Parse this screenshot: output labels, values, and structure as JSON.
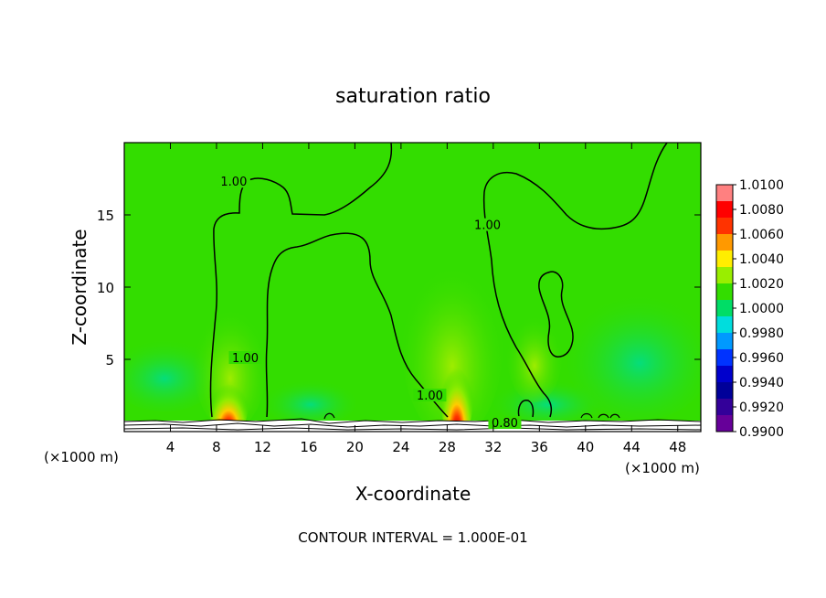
{
  "chart_data": {
    "type": "heatmap",
    "title": "saturation ratio",
    "xlabel": "X-coordinate",
    "ylabel": "Z-coordinate",
    "x_unit_left": "(×1000 m)",
    "x_unit_right": "(×1000 m)",
    "xlim": [
      0,
      50
    ],
    "ylim": [
      0,
      20
    ],
    "x_ticks": [
      4,
      8,
      12,
      16,
      20,
      24,
      28,
      32,
      36,
      40,
      44,
      48
    ],
    "y_ticks": [
      5,
      10,
      15
    ],
    "footer": "CONTOUR INTERVAL = 1.000E-01",
    "colorbar": {
      "labels": [
        "1.0100",
        "1.0080",
        "1.0060",
        "1.0040",
        "1.0020",
        "1.0000",
        "0.9980",
        "0.9960",
        "0.9940",
        "0.9920",
        "0.9900"
      ],
      "colors": [
        "#ff8080",
        "#ff0000",
        "#ff3300",
        "#ff9900",
        "#ffee00",
        "#99ee00",
        "#33dd00",
        "#00dd66",
        "#00dddd",
        "#0099ff",
        "#0033ff",
        "#0000cc",
        "#000099",
        "#330099",
        "#660099"
      ]
    },
    "contour_labels": [
      {
        "text": "1.00",
        "x": 9.5,
        "y": 17.2
      },
      {
        "text": "1.00",
        "x": 31.5,
        "y": 14.2
      },
      {
        "text": "1.00",
        "x": 10.5,
        "y": 5.0
      },
      {
        "text": "1.00",
        "x": 26.5,
        "y": 2.4
      },
      {
        "text": "0.80",
        "x": 33.0,
        "y": 0.5
      }
    ],
    "colors": {
      "background_field": "#33dd00",
      "axis": "#000000"
    }
  }
}
